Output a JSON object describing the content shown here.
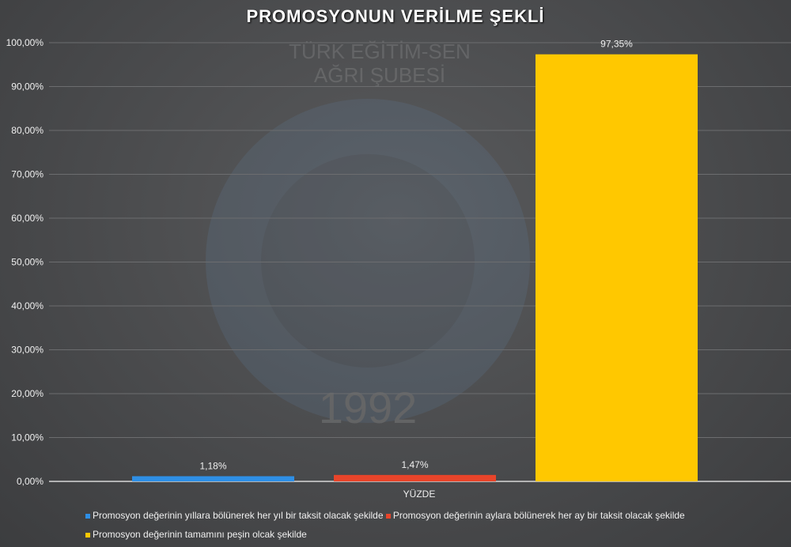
{
  "chart_data": {
    "type": "bar",
    "title": "PROMOSYONUN VERİLME ŞEKLİ",
    "xlabel": "YÜZDE",
    "ylabel": "",
    "categories": [
      "YÜZDE"
    ],
    "ylim": [
      0,
      100
    ],
    "yticks": [
      "0,00%",
      "10,00%",
      "20,00%",
      "30,00%",
      "40,00%",
      "50,00%",
      "60,00%",
      "70,00%",
      "80,00%",
      "90,00%",
      "100,00%"
    ],
    "grid": true,
    "legend_position": "bottom",
    "series": [
      {
        "name": "Promosyon değerinin yıllara bölünerek her yıl bir taksit olacak şekilde",
        "values": [
          1.18
        ],
        "label": "1,18%",
        "color": "#2e8fe6"
      },
      {
        "name": "Promosyon değerinin aylara bölünerek her ay bir taksit olacak şekilde",
        "values": [
          1.47
        ],
        "label": "1,47%",
        "color": "#e8442a"
      },
      {
        "name": "Promosyon değerinin tamamını peşin olcak şekilde",
        "values": [
          97.35
        ],
        "label": "97,35%",
        "color": "#ffc800"
      }
    ]
  },
  "watermark": {
    "line1": "TÜRK EĞİTİM-SEN",
    "line2": "AĞRI ŞUBESİ",
    "year": "1992"
  }
}
